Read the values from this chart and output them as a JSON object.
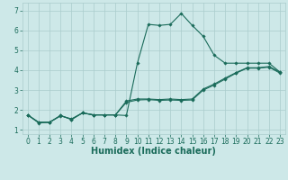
{
  "title": "",
  "xlabel": "Humidex (Indice chaleur)",
  "ylabel": "",
  "xlim": [
    -0.5,
    23.5
  ],
  "ylim": [
    0.8,
    7.4
  ],
  "xticks": [
    0,
    1,
    2,
    3,
    4,
    5,
    6,
    7,
    8,
    9,
    10,
    11,
    12,
    13,
    14,
    15,
    16,
    17,
    18,
    19,
    20,
    21,
    22,
    23
  ],
  "yticks": [
    1,
    2,
    3,
    4,
    5,
    6,
    7
  ],
  "background_color": "#cde8e8",
  "grid_color": "#aacccc",
  "line_color": "#1a6b5a",
  "series": [
    [
      1.75,
      1.35,
      1.38,
      1.7,
      1.55,
      1.85,
      1.75,
      1.75,
      1.75,
      1.72,
      4.35,
      6.3,
      6.25,
      6.3,
      6.85,
      6.25,
      5.7,
      4.75,
      4.35,
      4.35,
      4.35,
      4.35,
      4.35,
      3.9
    ],
    [
      1.75,
      1.38,
      1.38,
      1.72,
      1.52,
      1.85,
      1.75,
      1.75,
      1.75,
      2.38,
      2.5,
      2.52,
      2.48,
      2.5,
      2.48,
      2.5,
      3.0,
      3.25,
      3.55,
      3.85,
      4.1,
      4.1,
      4.15,
      3.85
    ],
    [
      1.75,
      1.38,
      1.38,
      1.72,
      1.52,
      1.85,
      1.75,
      1.75,
      1.75,
      2.45,
      2.55,
      2.55,
      2.52,
      2.55,
      2.52,
      2.55,
      3.05,
      3.3,
      3.6,
      3.88,
      4.12,
      4.12,
      4.18,
      3.9
    ]
  ],
  "xlabel_fontsize": 7,
  "tick_fontsize": 5.5,
  "linewidth": 0.8,
  "markersize": 1.8
}
